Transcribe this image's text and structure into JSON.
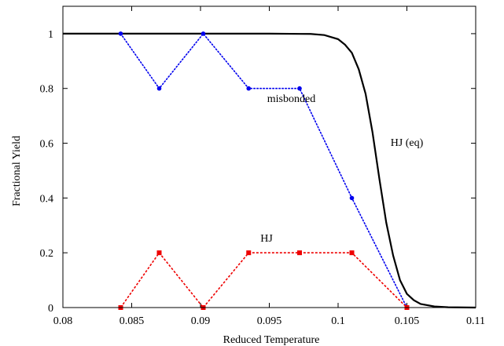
{
  "chart_data": {
    "type": "line",
    "title": "",
    "xlabel": "Reduced Temperature",
    "ylabel": "Fractional Yield",
    "xlim": [
      0.08,
      0.11
    ],
    "ylim": [
      0,
      1.1
    ],
    "x_ticks": [
      0.08,
      0.085,
      0.09,
      0.095,
      0.1,
      0.105,
      0.11
    ],
    "x_tick_labels": [
      "0.08",
      "0.085",
      "0.09",
      "0.095",
      "0.1",
      "0.105",
      "0.11"
    ],
    "y_ticks": [
      0,
      0.2,
      0.4,
      0.6,
      0.8,
      1
    ],
    "y_tick_labels": [
      "0",
      "0.2",
      "0.4",
      "0.6",
      "0.8",
      "1"
    ],
    "grid": false,
    "legend": "none",
    "series": [
      {
        "name": "HJ (eq)",
        "style": "solid",
        "color": "#000000",
        "marker": "none",
        "x": [
          0.08,
          0.09,
          0.095,
          0.098,
          0.099,
          0.1,
          0.1005,
          0.101,
          0.1015,
          0.102,
          0.1025,
          0.103,
          0.1035,
          0.104,
          0.1045,
          0.105,
          0.1055,
          0.106,
          0.107,
          0.108,
          0.11
        ],
        "y": [
          1.0,
          1.0,
          1.0,
          0.999,
          0.995,
          0.98,
          0.96,
          0.93,
          0.87,
          0.78,
          0.64,
          0.47,
          0.31,
          0.19,
          0.1,
          0.05,
          0.027,
          0.013,
          0.004,
          0.001,
          0.0
        ]
      },
      {
        "name": "misbonded",
        "style": "dotted",
        "color": "#0000ee",
        "marker": "circle",
        "x": [
          0.0842,
          0.087,
          0.0902,
          0.0935,
          0.0972,
          0.101,
          0.105
        ],
        "y": [
          1.0,
          0.8,
          1.0,
          0.8,
          0.8,
          0.4,
          0.0
        ]
      },
      {
        "name": "HJ",
        "style": "dashed",
        "color": "#ee0000",
        "marker": "square",
        "x": [
          0.0842,
          0.087,
          0.0902,
          0.0935,
          0.0972,
          0.101,
          0.105
        ],
        "y": [
          0.0,
          0.2,
          0.0,
          0.2,
          0.2,
          0.2,
          0.0
        ]
      }
    ],
    "annotations": [
      {
        "text": "misbonded",
        "x": 0.0966,
        "y": 0.75
      },
      {
        "text": "HJ (eq)",
        "x": 0.105,
        "y": 0.59
      },
      {
        "text": "HJ",
        "x": 0.0948,
        "y": 0.24
      }
    ]
  }
}
